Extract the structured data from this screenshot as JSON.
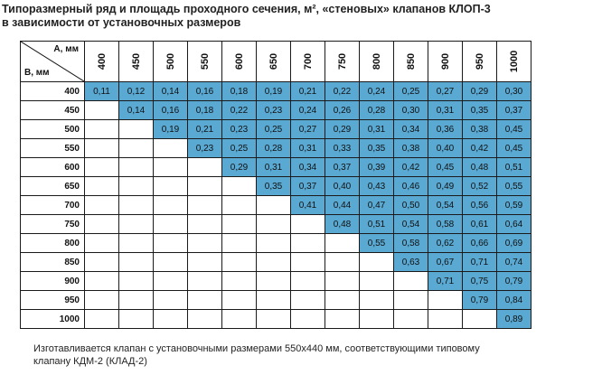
{
  "title_line1": "Типоразмерный ряд и площадь проходного сечения, м², «стеновых» клапанов КЛОП-3",
  "title_line2": "в зависимости от установочных размеров",
  "corner": {
    "a_label": "А, мм",
    "b_label": "В, мм"
  },
  "columns": [
    "400",
    "450",
    "500",
    "550",
    "600",
    "650",
    "700",
    "750",
    "800",
    "850",
    "900",
    "950",
    "1000"
  ],
  "rows": [
    {
      "b": "400",
      "values": [
        "0,11",
        "0,12",
        "0,14",
        "0,16",
        "0,18",
        "0,19",
        "0,21",
        "0,22",
        "0,24",
        "0,25",
        "0,27",
        "0,29",
        "0,30"
      ]
    },
    {
      "b": "450",
      "values": [
        "0,14",
        "0,16",
        "0,18",
        "0,22",
        "0,23",
        "0,24",
        "0,26",
        "0,28",
        "0,30",
        "0,31",
        "0,35",
        "0,37"
      ]
    },
    {
      "b": "500",
      "values": [
        "0,19",
        "0,21",
        "0,23",
        "0,25",
        "0,27",
        "0,29",
        "0,31",
        "0,34",
        "0,36",
        "0,38",
        "0,45"
      ]
    },
    {
      "b": "550",
      "values": [
        "0,23",
        "0,25",
        "0,28",
        "0,31",
        "0,33",
        "0,35",
        "0,38",
        "0,40",
        "0,42",
        "0,45"
      ]
    },
    {
      "b": "600",
      "values": [
        "0,29",
        "0,31",
        "0,34",
        "0,37",
        "0,39",
        "0,42",
        "0,45",
        "0,48",
        "0,51"
      ]
    },
    {
      "b": "650",
      "values": [
        "0,35",
        "0,37",
        "0,40",
        "0,43",
        "0,46",
        "0,49",
        "0,52",
        "0,55"
      ]
    },
    {
      "b": "700",
      "values": [
        "0,41",
        "0,44",
        "0,47",
        "0,50",
        "0,54",
        "0,56",
        "0,59"
      ]
    },
    {
      "b": "750",
      "values": [
        "0,48",
        "0,51",
        "0,54",
        "0,58",
        "0,61",
        "0,64"
      ]
    },
    {
      "b": "800",
      "values": [
        "0,55",
        "0,58",
        "0,62",
        "0,66",
        "0,69"
      ]
    },
    {
      "b": "850",
      "values": [
        "0,63",
        "0,67",
        "0,71",
        "0,74"
      ]
    },
    {
      "b": "900",
      "values": [
        "0,71",
        "0,75",
        "0,79"
      ]
    },
    {
      "b": "950",
      "values": [
        "0,79",
        "0,84"
      ]
    },
    {
      "b": "1000",
      "values": [
        "0,89"
      ]
    }
  ],
  "cell_color": "#5aa9d3",
  "footnote_line1": "Изготавливается клапан с установочными размерами 550х440 мм, соответствующими типовому",
  "footnote_line2": "клапану КДМ-2 (КЛАД-2)"
}
